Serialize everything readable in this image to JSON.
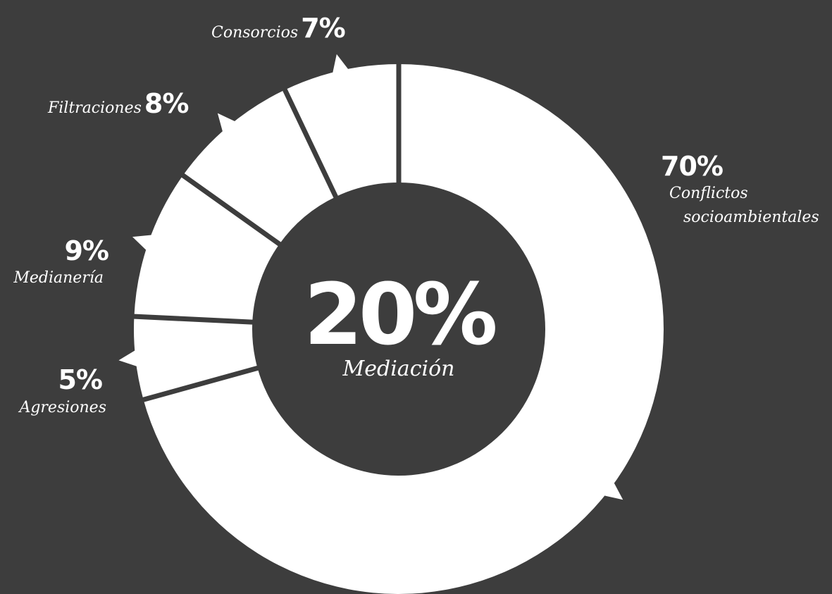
{
  "chart_data": {
    "type": "pie",
    "center": {
      "value": "20%",
      "label": "Mediación"
    },
    "slices": [
      {
        "label": "Conflictos socioambientales",
        "line1": "Conflictos",
        "line2": "socioambientales",
        "percent": 70,
        "percent_label": "70%"
      },
      {
        "label": "Agresiones",
        "percent": 5,
        "percent_label": "5%"
      },
      {
        "label": "Medianería",
        "percent": 9,
        "percent_label": "9%"
      },
      {
        "label": "Filtraciones",
        "percent": 8,
        "percent_label": "8%"
      },
      {
        "label": "Consorcios",
        "percent": 7,
        "percent_label": "7%"
      }
    ],
    "colors": {
      "background": "#3d3d3d",
      "slice": "#ffffff"
    }
  }
}
